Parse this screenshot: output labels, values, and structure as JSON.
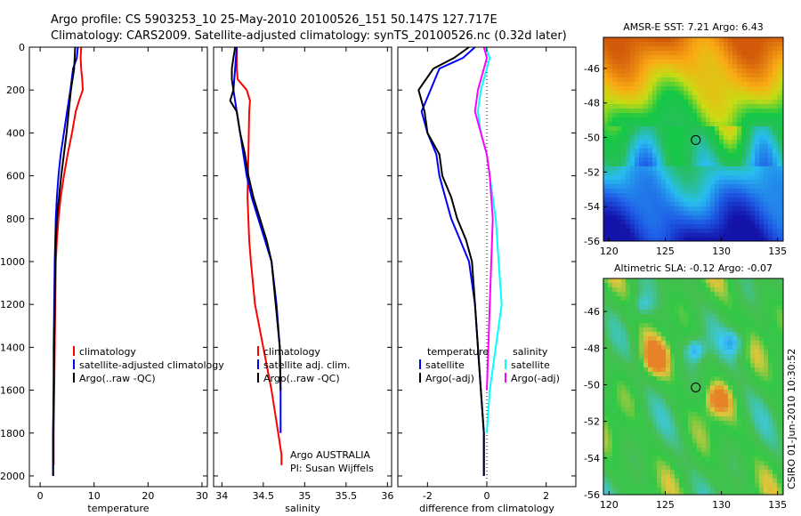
{
  "header": {
    "line1": "Argo profile: CS 5903253_10 25-May-2010 20100526_151 50.147S 127.717E",
    "line2": "Climatology: CARS2009. Satellite-adjusted climatology: synTS_20100526.nc (0.32d later)"
  },
  "stamp": "CSIRO 01-Jun-2010 10:30:52",
  "colors": {
    "climatology": "#ff0000",
    "satellite": "#0000ff",
    "argo": "#000000",
    "satellite_diff": "#00ffff",
    "argo_salt_diff": "#ff00ff"
  },
  "chart_data": [
    {
      "type": "line",
      "xlabel": "temperature",
      "ylabel": "",
      "xlim": [
        -2,
        31
      ],
      "ylim": [
        2050,
        0
      ],
      "y_inverted": true,
      "xticks": [
        "0",
        "10",
        "20",
        "30"
      ],
      "xtick_values": [
        0,
        10,
        20,
        30
      ],
      "yticks": [
        "0",
        "200",
        "400",
        "600",
        "800",
        "1000",
        "1200",
        "1400",
        "1600",
        "1800",
        "2000"
      ],
      "ytick_values": [
        0,
        200,
        400,
        600,
        800,
        1000,
        1200,
        1400,
        1600,
        1800,
        2000
      ],
      "legend": {
        "placement": "bottom-right",
        "entries": [
          {
            "label": "climatology",
            "color": "#ff0000"
          },
          {
            "label": "satellite-adjusted climatology",
            "color": "#0000ff"
          },
          {
            "label": "Argo(..raw -QC)",
            "color": "#000000"
          }
        ]
      },
      "series": [
        {
          "key": "clim",
          "color": "#ff0000",
          "x": [
            7.6,
            7.5,
            7.6,
            7.8,
            7.9,
            7.2,
            6.6,
            5.9,
            5.1,
            4.4,
            3.8,
            3.4,
            3.1,
            2.9,
            2.8,
            2.7,
            2.6,
            2.5,
            2.5,
            2.5
          ],
          "y": [
            0,
            50,
            100,
            150,
            200,
            250,
            300,
            400,
            500,
            600,
            700,
            800,
            900,
            1000,
            1200,
            1400,
            1600,
            1800,
            1900,
            1950
          ]
        },
        {
          "key": "sat",
          "color": "#0000ff",
          "x": [
            7.0,
            6.8,
            6.1,
            5.6,
            5.0,
            4.4,
            3.8,
            3.4,
            3.1,
            2.9,
            2.8,
            2.7,
            2.6,
            2.5,
            2.5,
            2.4,
            2.4
          ],
          "y": [
            0,
            50,
            100,
            200,
            300,
            400,
            500,
            600,
            700,
            800,
            900,
            1000,
            1200,
            1400,
            1600,
            1800,
            2000
          ]
        },
        {
          "key": "argo",
          "color": "#000000",
          "x": [
            6.5,
            6.4,
            6.3,
            6.0,
            5.7,
            5.3,
            4.9,
            4.4,
            3.9,
            3.5,
            3.1,
            2.9,
            2.8,
            2.7,
            2.6,
            2.5,
            2.4,
            2.4
          ],
          "y": [
            0,
            50,
            100,
            150,
            200,
            300,
            400,
            500,
            600,
            700,
            800,
            900,
            1000,
            1200,
            1400,
            1600,
            1800,
            2000
          ]
        }
      ]
    },
    {
      "type": "line",
      "xlabel": "salinity",
      "xlim": [
        33.9,
        36.05
      ],
      "ylim": [
        2050,
        0
      ],
      "y_inverted": true,
      "xticks": [
        "34",
        "34.5",
        "35",
        "35.5",
        "36"
      ],
      "xtick_values": [
        34,
        34.5,
        35,
        35.5,
        36
      ],
      "annotations": [
        "Argo AUSTRALIA",
        "PI: Susan Wijffels"
      ],
      "legend": {
        "placement": "bottom-right",
        "entries": [
          {
            "label": "climatology",
            "color": "#ff0000"
          },
          {
            "label": "satellite adj. clim.",
            "color": "#0000ff"
          },
          {
            "label": "Argo(..raw -QC)",
            "color": "#000000"
          }
        ]
      },
      "series": [
        {
          "key": "clim",
          "color": "#ff0000",
          "x": [
            34.18,
            34.18,
            34.19,
            34.3,
            34.34,
            34.33,
            34.32,
            34.31,
            34.33,
            34.35,
            34.4,
            34.5,
            34.6,
            34.68,
            34.72,
            34.72
          ],
          "y": [
            0,
            100,
            150,
            200,
            250,
            300,
            500,
            700,
            900,
            1000,
            1200,
            1400,
            1600,
            1800,
            1900,
            1950
          ]
        },
        {
          "key": "sat",
          "color": "#0000ff",
          "x": [
            34.18,
            34.17,
            34.16,
            34.14,
            34.18,
            34.22,
            34.26,
            34.3,
            34.36,
            34.44,
            34.52,
            34.6,
            34.66,
            34.7,
            34.71,
            34.71
          ],
          "y": [
            0,
            50,
            100,
            200,
            300,
            400,
            500,
            600,
            700,
            800,
            900,
            1000,
            1200,
            1400,
            1600,
            1800
          ]
        },
        {
          "key": "argo",
          "color": "#000000",
          "x": [
            34.16,
            34.14,
            34.12,
            34.12,
            34.14,
            34.1,
            34.18,
            34.22,
            34.28,
            34.32,
            34.38,
            34.46,
            34.54,
            34.6,
            34.65,
            34.7,
            34.71
          ],
          "y": [
            0,
            50,
            100,
            150,
            200,
            250,
            300,
            400,
            500,
            600,
            700,
            800,
            900,
            1000,
            1200,
            1400,
            1600
          ]
        }
      ]
    },
    {
      "type": "line",
      "xlabel": "difference from climatology",
      "xlim": [
        -3,
        3
      ],
      "ylim": [
        2050,
        0
      ],
      "y_inverted": true,
      "xticks": [
        "-2",
        "0",
        "2"
      ],
      "xtick_values": [
        -2,
        0,
        2
      ],
      "zero_line": true,
      "legend": {
        "placement": "bottom",
        "columns": [
          {
            "title": "temperature",
            "entries": [
              {
                "label": "satellite",
                "color": "#0000ff"
              },
              {
                "label": "Argo(-adj)",
                "color": "#000000"
              }
            ]
          },
          {
            "title": "salinity",
            "entries": [
              {
                "label": "satellite",
                "color": "#00ffff"
              },
              {
                "label": "Argo(-adj)",
                "color": "#ff00ff"
              }
            ]
          }
        ]
      },
      "series": [
        {
          "key": "t_sat",
          "color": "#0000ff",
          "x": [
            -0.4,
            -0.8,
            -1.6,
            -1.9,
            -2.2,
            -2.0,
            -1.7,
            -1.6,
            -1.4,
            -1.2,
            -0.9,
            -0.6,
            -0.4,
            -0.3,
            -0.2,
            -0.1,
            -0.1
          ],
          "y": [
            0,
            50,
            100,
            200,
            300,
            400,
            500,
            600,
            700,
            800,
            900,
            1000,
            1200,
            1400,
            1600,
            1800,
            2000
          ]
        },
        {
          "key": "t_argo",
          "color": "#000000",
          "x": [
            -0.6,
            -1.1,
            -1.8,
            -2.3,
            -2.1,
            -2.0,
            -1.6,
            -1.5,
            -1.2,
            -1.0,
            -0.7,
            -0.5,
            -0.4,
            -0.3,
            -0.2,
            -0.1,
            -0.1
          ],
          "y": [
            0,
            50,
            100,
            200,
            300,
            400,
            500,
            600,
            700,
            800,
            900,
            1000,
            1200,
            1400,
            1600,
            1800,
            2000
          ]
        },
        {
          "key": "s_sat",
          "color": "#00ffff",
          "x": [
            -0.05,
            0.1,
            0.0,
            -0.2,
            -0.3,
            -0.2,
            0.0,
            0.1,
            0.3,
            0.4,
            0.5,
            0.3,
            0.1,
            0.0
          ],
          "y": [
            0,
            50,
            100,
            200,
            300,
            400,
            500,
            600,
            800,
            1000,
            1200,
            1400,
            1600,
            1800
          ]
        },
        {
          "key": "s_argo",
          "color": "#ff00ff",
          "x": [
            -0.1,
            0.0,
            -0.1,
            -0.3,
            -0.4,
            -0.2,
            0.0,
            0.1,
            0.2,
            0.15,
            0.1,
            0.05,
            0.0
          ],
          "y": [
            0,
            50,
            100,
            200,
            300,
            400,
            500,
            600,
            800,
            1000,
            1200,
            1400,
            1600
          ]
        }
      ]
    },
    {
      "type": "heatmap",
      "title": "AMSR-E SST: 7.21 Argo: 6.43",
      "xlim": [
        119.5,
        135.5
      ],
      "ylim": [
        -56,
        -44.2
      ],
      "xticks": [
        "120",
        "125",
        "130",
        "135"
      ],
      "xtick_values": [
        120,
        125,
        130,
        135
      ],
      "yticks": [
        "-46",
        "-48",
        "-50",
        "-52",
        "-54",
        "-56"
      ],
      "ytick_values": [
        -46,
        -48,
        -50,
        -52,
        -54,
        -56
      ],
      "marker": {
        "lon": 127.717,
        "lat": -50.147
      }
    },
    {
      "type": "heatmap",
      "title": "Altimetric SLA: -0.12 Argo: -0.07",
      "xlim": [
        119.5,
        135.5
      ],
      "ylim": [
        -56,
        -44.2
      ],
      "xticks": [
        "120",
        "125",
        "130",
        "135"
      ],
      "xtick_values": [
        120,
        125,
        130,
        135
      ],
      "yticks": [
        "-46",
        "-48",
        "-50",
        "-52",
        "-54",
        "-56"
      ],
      "ytick_values": [
        -46,
        -48,
        -50,
        -52,
        -54,
        -56
      ],
      "marker": {
        "lon": 127.717,
        "lat": -50.147
      }
    }
  ]
}
